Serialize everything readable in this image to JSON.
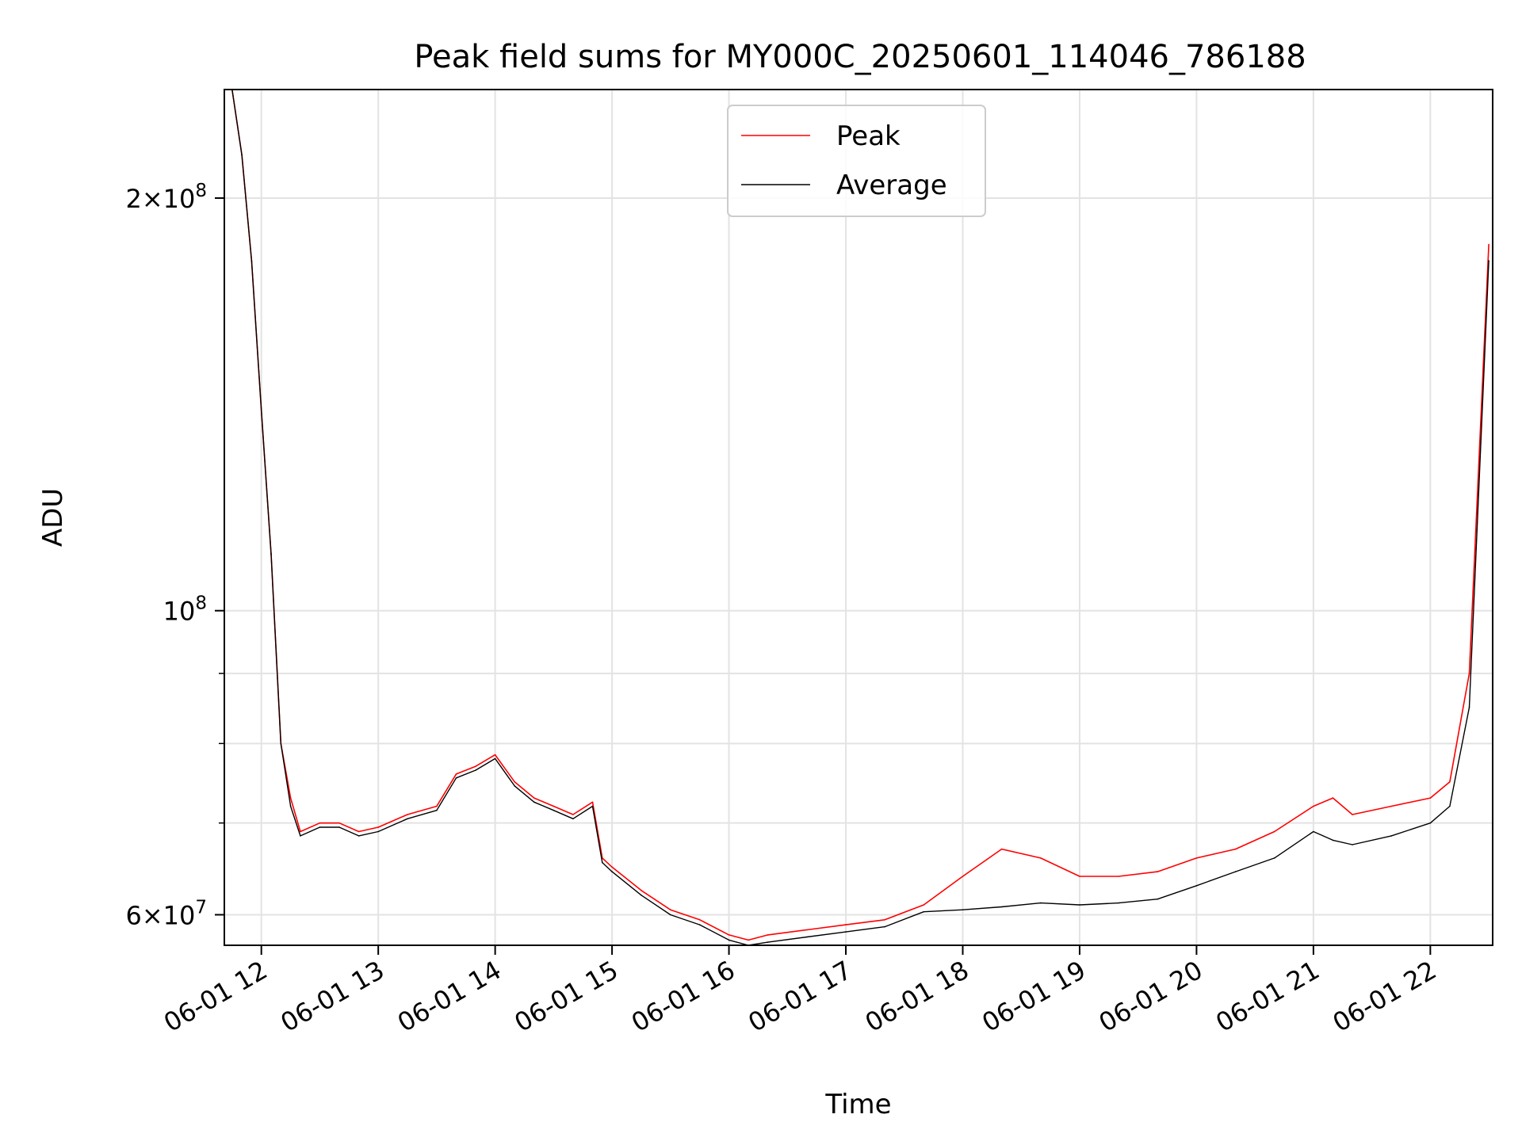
{
  "chart_data": {
    "type": "line",
    "title": "Peak field sums for MY000C_20250601_114046_786188",
    "xlabel": "Time",
    "ylabel": "ADU",
    "yscale": "log",
    "ylim": [
      57000000,
      240000000
    ],
    "xlim": [
      "06-01 11:41",
      "06-01 22:32"
    ],
    "grid": true,
    "legend_position": "top-center",
    "x_tick_labels": [
      "06-01 12",
      "06-01 13",
      "06-01 14",
      "06-01 15",
      "06-01 16",
      "06-01 17",
      "06-01 18",
      "06-01 19",
      "06-01 20",
      "06-01 21",
      "06-01 22"
    ],
    "y_tick_labels": [
      {
        "value": 60000000,
        "mantissa": "6",
        "exponent": "7"
      },
      {
        "value": 100000000,
        "mantissa": "",
        "exponent": "8"
      },
      {
        "value": 200000000,
        "mantissa": "2",
        "exponent": "8"
      }
    ],
    "y_minor_ticks": [
      70000000,
      80000000,
      90000000
    ],
    "series": [
      {
        "name": "Peak",
        "color": "#ff0000",
        "x": [
          "06-01 11:45",
          "06-01 11:50",
          "06-01 11:55",
          "06-01 12:00",
          "06-01 12:05",
          "06-01 12:10",
          "06-01 12:15",
          "06-01 12:20",
          "06-01 12:30",
          "06-01 12:40",
          "06-01 12:50",
          "06-01 13:00",
          "06-01 13:15",
          "06-01 13:30",
          "06-01 13:40",
          "06-01 13:50",
          "06-01 14:00",
          "06-01 14:10",
          "06-01 14:20",
          "06-01 14:30",
          "06-01 14:40",
          "06-01 14:50",
          "06-01 14:55",
          "06-01 15:00",
          "06-01 15:15",
          "06-01 15:30",
          "06-01 15:45",
          "06-01 16:00",
          "06-01 16:10",
          "06-01 16:20",
          "06-01 16:40",
          "06-01 17:00",
          "06-01 17:20",
          "06-01 17:40",
          "06-01 18:00",
          "06-01 18:20",
          "06-01 18:40",
          "06-01 19:00",
          "06-01 19:20",
          "06-01 19:40",
          "06-01 20:00",
          "06-01 20:20",
          "06-01 20:40",
          "06-01 21:00",
          "06-01 21:10",
          "06-01 21:20",
          "06-01 21:40",
          "06-01 22:00",
          "06-01 22:10",
          "06-01 22:20",
          "06-01 22:30"
        ],
        "values": [
          240000000,
          215000000,
          180000000,
          140000000,
          110000000,
          80000000,
          73000000,
          69000000,
          70000000,
          70000000,
          69000000,
          69500000,
          71000000,
          72000000,
          76000000,
          77000000,
          78500000,
          75000000,
          73000000,
          72000000,
          71000000,
          72500000,
          66000000,
          65000000,
          62500000,
          60500000,
          59500000,
          58000000,
          57500000,
          58000000,
          58500000,
          59000000,
          59500000,
          61000000,
          64000000,
          67000000,
          66000000,
          64000000,
          64000000,
          64500000,
          66000000,
          67000000,
          69000000,
          72000000,
          73000000,
          71000000,
          72000000,
          73000000,
          75000000,
          90000000,
          185000000
        ]
      },
      {
        "name": "Average",
        "color": "#000000",
        "x": [
          "06-01 11:45",
          "06-01 11:50",
          "06-01 11:55",
          "06-01 12:00",
          "06-01 12:05",
          "06-01 12:10",
          "06-01 12:15",
          "06-01 12:20",
          "06-01 12:30",
          "06-01 12:40",
          "06-01 12:50",
          "06-01 13:00",
          "06-01 13:15",
          "06-01 13:30",
          "06-01 13:40",
          "06-01 13:50",
          "06-01 14:00",
          "06-01 14:10",
          "06-01 14:20",
          "06-01 14:30",
          "06-01 14:40",
          "06-01 14:50",
          "06-01 14:55",
          "06-01 15:00",
          "06-01 15:15",
          "06-01 15:30",
          "06-01 15:45",
          "06-01 16:00",
          "06-01 16:10",
          "06-01 16:20",
          "06-01 16:40",
          "06-01 17:00",
          "06-01 17:20",
          "06-01 17:40",
          "06-01 18:00",
          "06-01 18:20",
          "06-01 18:40",
          "06-01 19:00",
          "06-01 19:20",
          "06-01 19:40",
          "06-01 20:00",
          "06-01 20:20",
          "06-01 20:40",
          "06-01 21:00",
          "06-01 21:10",
          "06-01 21:20",
          "06-01 21:40",
          "06-01 22:00",
          "06-01 22:10",
          "06-01 22:20",
          "06-01 22:30"
        ],
        "values": [
          240000000,
          215000000,
          180000000,
          140000000,
          110000000,
          80000000,
          72000000,
          68500000,
          69500000,
          69500000,
          68500000,
          69000000,
          70500000,
          71500000,
          75500000,
          76500000,
          78000000,
          74500000,
          72500000,
          71500000,
          70500000,
          72000000,
          65500000,
          64500000,
          62000000,
          60000000,
          59000000,
          57500000,
          57000000,
          57300000,
          57800000,
          58300000,
          58800000,
          60300000,
          60500000,
          60800000,
          61200000,
          61000000,
          61200000,
          61600000,
          63000000,
          64500000,
          66000000,
          69000000,
          68000000,
          67500000,
          68500000,
          70000000,
          72000000,
          85000000,
          180000000
        ]
      }
    ]
  }
}
